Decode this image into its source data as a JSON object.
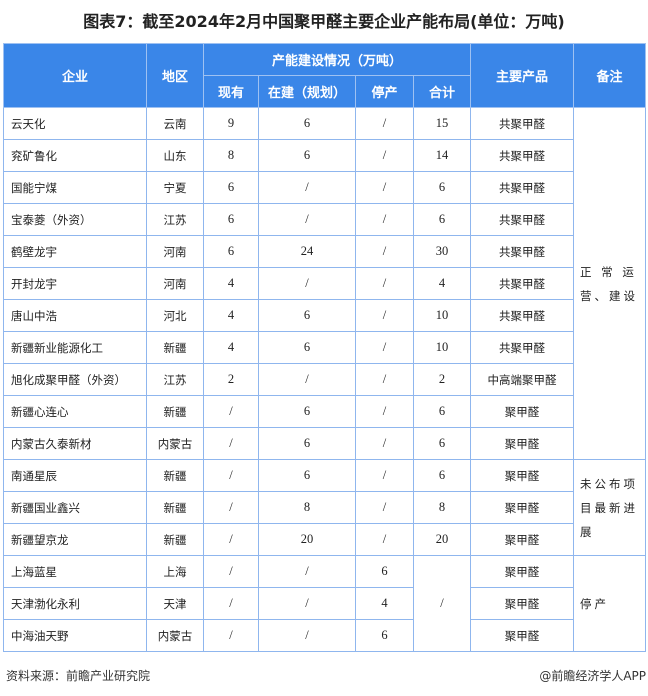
{
  "title": "图表7：截至2024年2月中国聚甲醛主要企业产能布局(单位：万吨)",
  "header": {
    "company": "企业",
    "region": "地区",
    "capacity_group": "产能建设情况（万吨）",
    "existing": "现有",
    "building": "在建（规划）",
    "stopped": "停产",
    "total": "合计",
    "product": "主要产品",
    "remark": "备注"
  },
  "rows": [
    [
      "云天化",
      "云南",
      "9",
      "6",
      "/",
      "15",
      "共聚甲醛"
    ],
    [
      "兖矿鲁化",
      "山东",
      "8",
      "6",
      "/",
      "14",
      "共聚甲醛"
    ],
    [
      "国能宁煤",
      "宁夏",
      "6",
      "/",
      "/",
      "6",
      "共聚甲醛"
    ],
    [
      "宝泰菱（外资）",
      "江苏",
      "6",
      "/",
      "/",
      "6",
      "共聚甲醛"
    ],
    [
      "鹤壁龙宇",
      "河南",
      "6",
      "24",
      "/",
      "30",
      "共聚甲醛"
    ],
    [
      "开封龙宇",
      "河南",
      "4",
      "/",
      "/",
      "4",
      "共聚甲醛"
    ],
    [
      "唐山中浩",
      "河北",
      "4",
      "6",
      "/",
      "10",
      "共聚甲醛"
    ],
    [
      "新疆新业能源化工",
      "新疆",
      "4",
      "6",
      "/",
      "10",
      "共聚甲醛"
    ],
    [
      "旭化成聚甲醛（外资）",
      "江苏",
      "2",
      "/",
      "/",
      "2",
      "中高端聚甲醛"
    ],
    [
      "新疆心连心",
      "新疆",
      "/",
      "6",
      "/",
      "6",
      "聚甲醛"
    ],
    [
      "内蒙古久泰新材",
      "内蒙古",
      "/",
      "6",
      "/",
      "6",
      "聚甲醛"
    ],
    [
      "南通星辰",
      "新疆",
      "/",
      "6",
      "/",
      "6",
      "聚甲醛"
    ],
    [
      "新疆国业鑫兴",
      "新疆",
      "/",
      "8",
      "/",
      "8",
      "聚甲醛"
    ],
    [
      "新疆望京龙",
      "新疆",
      "/",
      "20",
      "/",
      "20",
      "聚甲醛"
    ],
    [
      "上海蓝星",
      "上海",
      "/",
      "/",
      "6",
      "/",
      "聚甲醛"
    ],
    [
      "天津渤化永利",
      "天津",
      "/",
      "/",
      "4",
      "",
      "聚甲醛"
    ],
    [
      "中海油天野",
      "内蒙古",
      "/",
      "/",
      "6",
      "",
      "聚甲醛"
    ]
  ],
  "remarks": [
    {
      "text": "正 常 运 营、建设",
      "start": 0,
      "span": 11
    },
    {
      "text": "未公布项目最新进展",
      "start": 11,
      "span": 3
    },
    {
      "text": "停产",
      "start": 14,
      "span": 3
    }
  ],
  "footer": {
    "source": "资料来源：前瞻产业研究院",
    "brand": "@前瞻经济学人APP"
  },
  "colors": {
    "header_bg": "#3a86e8",
    "border": "#8fb6ee"
  }
}
